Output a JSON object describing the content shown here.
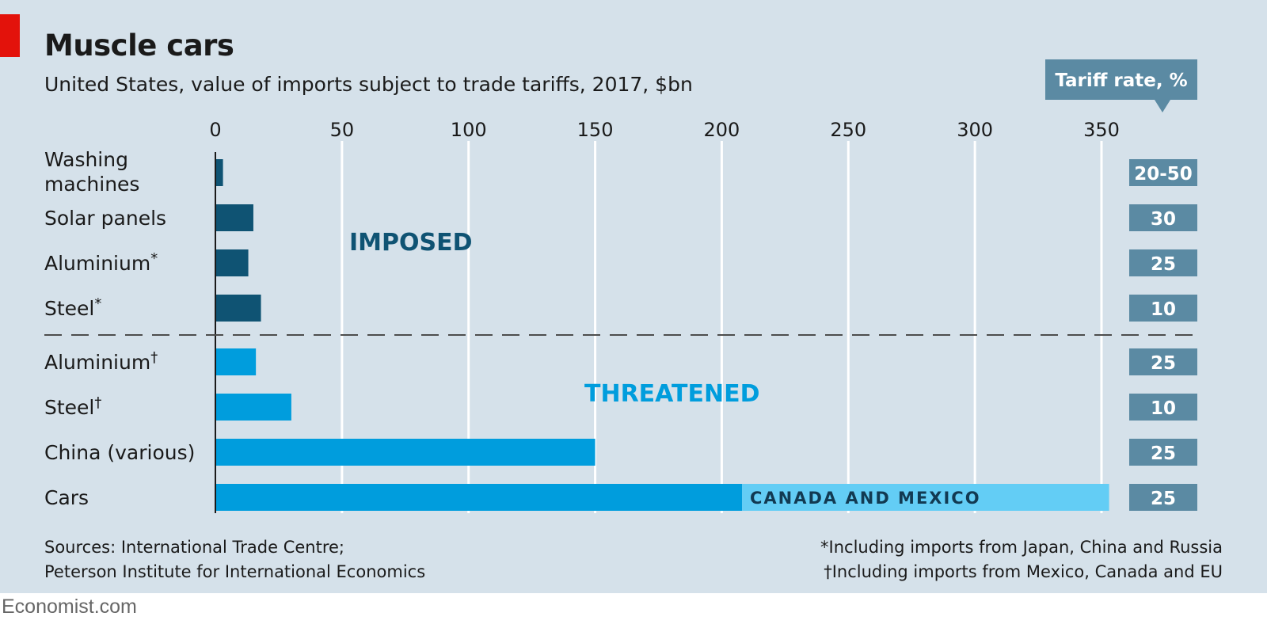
{
  "brand": "Economist.com",
  "colors": {
    "background": "#d5e1ea",
    "imposed": "#0f5373",
    "threatened": "#009ddd",
    "canada_mexico": "#63cdf5",
    "rate_box": "#5b8aa3",
    "accent_red": "#e3120b"
  },
  "chart_data": {
    "type": "bar",
    "orientation": "horizontal",
    "title": "Muscle cars",
    "subtitle": "United States, value of imports subject to trade tariffs, 2017, $bn",
    "xlim": [
      0,
      350
    ],
    "xticks": [
      "0",
      "50",
      "100",
      "150",
      "200",
      "250",
      "300",
      "350"
    ],
    "xtick_values": [
      0,
      50,
      100,
      150,
      200,
      250,
      300,
      350
    ],
    "grid": true,
    "rate_header": "Tariff rate, %",
    "groups": [
      {
        "label": "IMPOSED",
        "color": "#0f5373"
      },
      {
        "label": "THREATENED",
        "color": "#009ddd"
      }
    ],
    "categories": [
      {
        "label_lines": [
          "Washing",
          "machines"
        ],
        "mark": "",
        "group": 0,
        "value": 3,
        "rate": "20-50"
      },
      {
        "label_lines": [
          "Solar panels"
        ],
        "mark": "",
        "group": 0,
        "value": 15,
        "rate": "30"
      },
      {
        "label_lines": [
          "Aluminium"
        ],
        "mark": "*",
        "group": 0,
        "value": 13,
        "rate": "25"
      },
      {
        "label_lines": [
          "Steel"
        ],
        "mark": "*",
        "group": 0,
        "value": 18,
        "rate": "10"
      },
      {
        "label_lines": [
          "Aluminium"
        ],
        "mark": "†",
        "group": 1,
        "value": 16,
        "rate": "25"
      },
      {
        "label_lines": [
          "Steel"
        ],
        "mark": "†",
        "group": 1,
        "value": 30,
        "rate": "10"
      },
      {
        "label_lines": [
          "China (various)"
        ],
        "mark": "",
        "group": 1,
        "value": 150,
        "rate": "25"
      },
      {
        "label_lines": [
          "Cars"
        ],
        "mark": "",
        "group": 1,
        "value": 208,
        "rate": "25",
        "extension": {
          "value": 145,
          "label": "CANADA AND MEXICO",
          "color": "#63cdf5"
        }
      }
    ]
  },
  "footer": {
    "sources_line1": "Sources: International Trade Centre;",
    "sources_line2": "Peterson Institute for International Economics",
    "note_star": "*Including imports from Japan, China and Russia",
    "note_dagger": "†Including imports from Mexico, Canada and EU"
  }
}
